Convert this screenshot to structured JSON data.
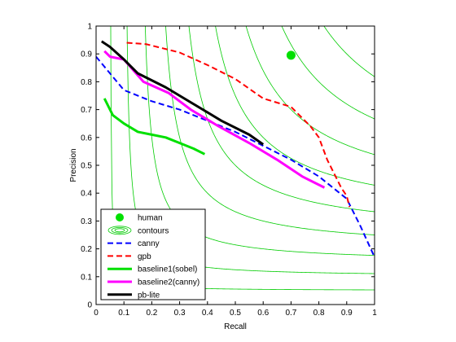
{
  "chart_data": {
    "type": "line",
    "title": "",
    "xlabel": "Recall",
    "ylabel": "Precision",
    "xlim": [
      0,
      1
    ],
    "ylim": [
      0,
      1
    ],
    "xticks": [
      "0",
      "0.1",
      "0.2",
      "0.3",
      "0.4",
      "0.5",
      "0.6",
      "0.7",
      "0.8",
      "0.9",
      "1"
    ],
    "yticks": [
      "0",
      "0.1",
      "0.2",
      "0.3",
      "0.4",
      "0.5",
      "0.6",
      "0.7",
      "0.8",
      "0.9",
      "1"
    ],
    "legend_position": "bottom-left",
    "contour_levels": [
      0.1,
      0.2,
      0.3,
      0.4,
      0.5,
      0.6,
      0.7,
      0.8,
      0.9
    ],
    "series": [
      {
        "name": "human",
        "kind": "marker",
        "color": "#00e000",
        "points": [
          [
            0.7,
            0.895
          ]
        ]
      },
      {
        "name": "contours",
        "kind": "contour",
        "color": "#00cc00",
        "points": []
      },
      {
        "name": "canny",
        "kind": "line",
        "style": "dashed",
        "color": "#0000ff",
        "points": [
          [
            0.0,
            0.89
          ],
          [
            0.05,
            0.83
          ],
          [
            0.1,
            0.77
          ],
          [
            0.2,
            0.73
          ],
          [
            0.3,
            0.7
          ],
          [
            0.4,
            0.66
          ],
          [
            0.5,
            0.62
          ],
          [
            0.6,
            0.57
          ],
          [
            0.7,
            0.52
          ],
          [
            0.8,
            0.46
          ],
          [
            0.9,
            0.38
          ],
          [
            0.95,
            0.28
          ],
          [
            1.0,
            0.17
          ]
        ]
      },
      {
        "name": "gpb",
        "kind": "line",
        "style": "dashed",
        "color": "#ff0000",
        "points": [
          [
            0.11,
            0.94
          ],
          [
            0.18,
            0.935
          ],
          [
            0.3,
            0.905
          ],
          [
            0.4,
            0.86
          ],
          [
            0.5,
            0.81
          ],
          [
            0.6,
            0.74
          ],
          [
            0.7,
            0.71
          ],
          [
            0.74,
            0.67
          ],
          [
            0.77,
            0.64
          ],
          [
            0.8,
            0.6
          ],
          [
            0.83,
            0.52
          ],
          [
            0.86,
            0.46
          ],
          [
            0.88,
            0.42
          ],
          [
            0.9,
            0.39
          ],
          [
            0.91,
            0.35
          ]
        ]
      },
      {
        "name": "baseline1(sobel)",
        "kind": "line",
        "style": "solid",
        "color": "#00e000",
        "points": [
          [
            0.03,
            0.74
          ],
          [
            0.06,
            0.68
          ],
          [
            0.1,
            0.65
          ],
          [
            0.15,
            0.62
          ],
          [
            0.2,
            0.61
          ],
          [
            0.25,
            0.6
          ],
          [
            0.3,
            0.58
          ],
          [
            0.35,
            0.56
          ],
          [
            0.39,
            0.54
          ]
        ]
      },
      {
        "name": "baseline2(canny)",
        "kind": "line",
        "style": "solid",
        "color": "#ff00ff",
        "points": [
          [
            0.03,
            0.91
          ],
          [
            0.05,
            0.89
          ],
          [
            0.1,
            0.88
          ],
          [
            0.17,
            0.8
          ],
          [
            0.26,
            0.76
          ],
          [
            0.34,
            0.7
          ],
          [
            0.44,
            0.64
          ],
          [
            0.55,
            0.58
          ],
          [
            0.65,
            0.52
          ],
          [
            0.74,
            0.46
          ],
          [
            0.82,
            0.42
          ]
        ]
      },
      {
        "name": "pb-lite",
        "kind": "line",
        "style": "solid",
        "color": "#000000",
        "points": [
          [
            0.02,
            0.945
          ],
          [
            0.05,
            0.925
          ],
          [
            0.1,
            0.88
          ],
          [
            0.15,
            0.83
          ],
          [
            0.25,
            0.78
          ],
          [
            0.35,
            0.72
          ],
          [
            0.45,
            0.66
          ],
          [
            0.55,
            0.61
          ],
          [
            0.6,
            0.575
          ]
        ]
      }
    ]
  }
}
